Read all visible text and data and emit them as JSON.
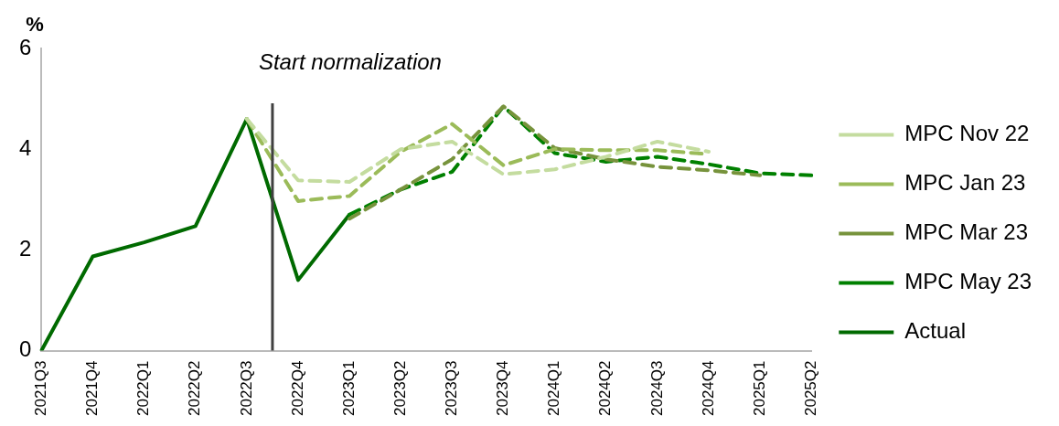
{
  "chart_data": {
    "type": "line",
    "ylabel": "%",
    "categories": [
      "2021Q3",
      "2021Q4",
      "2022Q1",
      "2022Q2",
      "2022Q3",
      "2022Q4",
      "2023Q1",
      "2023Q2",
      "2023Q3",
      "2023Q4",
      "2024Q1",
      "2024Q2",
      "2024Q3",
      "2024Q4",
      "2025Q1",
      "2025Q2"
    ],
    "series": [
      {
        "name": "MPC Nov 22",
        "color": "#c4dc9f",
        "line_style": "dashed",
        "values": [
          null,
          null,
          null,
          null,
          4.6,
          3.38,
          3.35,
          4.0,
          4.15,
          3.5,
          3.6,
          3.85,
          4.15,
          3.95,
          null,
          null
        ]
      },
      {
        "name": "MPC Jan 23",
        "color": "#9bbb59",
        "line_style": "dashed",
        "values": [
          null,
          null,
          null,
          null,
          4.6,
          2.97,
          3.07,
          3.95,
          4.5,
          3.68,
          4.0,
          3.98,
          3.98,
          3.9,
          null,
          null
        ]
      },
      {
        "name": "MPC Mar 23",
        "color": "#77933c",
        "line_style": "dashed",
        "values": [
          null,
          null,
          null,
          null,
          null,
          null,
          2.62,
          3.2,
          3.8,
          4.85,
          4.02,
          3.8,
          3.65,
          3.58,
          3.48,
          null
        ]
      },
      {
        "name": "MPC May 23",
        "color": "#008000",
        "line_style": "dashed",
        "values": [
          null,
          null,
          null,
          null,
          null,
          null,
          2.7,
          3.2,
          3.55,
          4.85,
          3.92,
          3.75,
          3.85,
          3.7,
          3.52,
          3.48
        ]
      },
      {
        "name": "Actual",
        "color": "#006a00",
        "line_style": "solid",
        "values": [
          0,
          1.87,
          2.15,
          2.47,
          4.6,
          1.4,
          2.7,
          null,
          null,
          null,
          null,
          null,
          null,
          null,
          null,
          null
        ]
      }
    ],
    "ylim": [
      0,
      6
    ],
    "yticks": [
      0,
      2,
      4,
      6
    ],
    "grid": false,
    "legend": "right",
    "marker": "none",
    "annotations": [
      "Start normalization"
    ]
  }
}
